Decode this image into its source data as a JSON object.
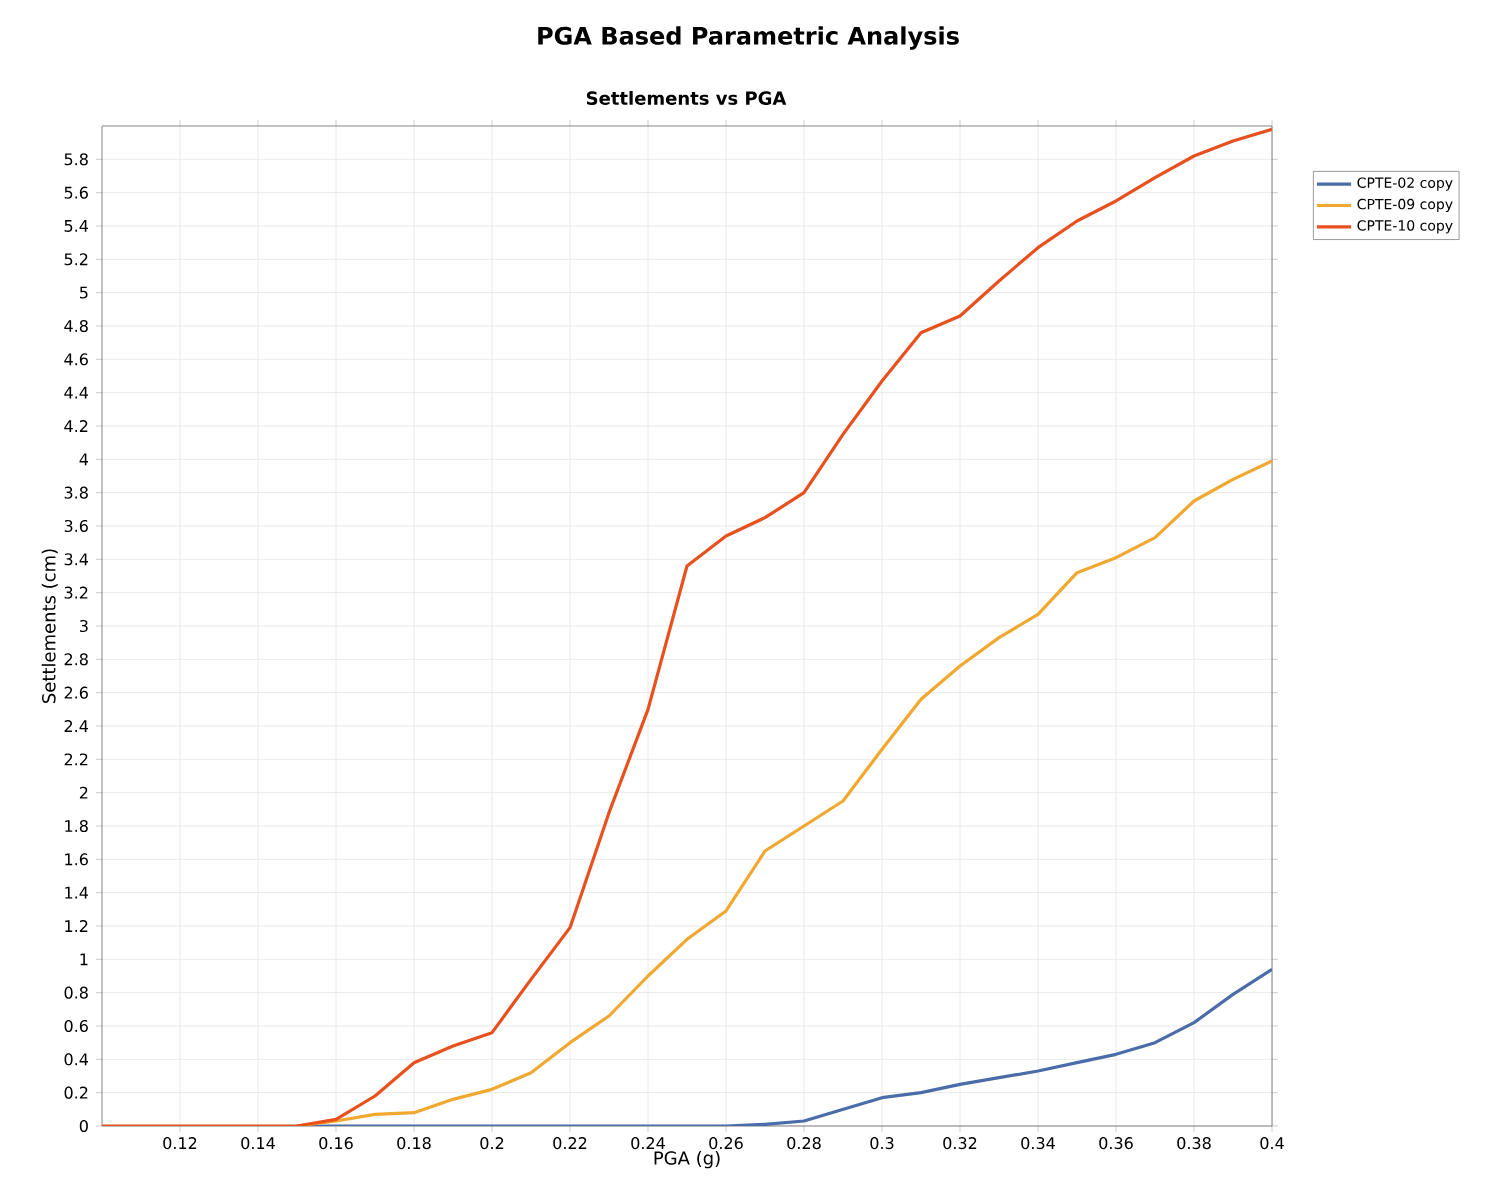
{
  "chart_data": {
    "type": "line",
    "title": "PGA Based Parametric Analysis",
    "subtitle": "Settlements vs PGA",
    "xlabel": "PGA (g)",
    "ylabel": "Settlements (cm)",
    "x": [
      0.1,
      0.11,
      0.12,
      0.13,
      0.14,
      0.15,
      0.16,
      0.17,
      0.18,
      0.19,
      0.2,
      0.21,
      0.22,
      0.23,
      0.24,
      0.25,
      0.26,
      0.27,
      0.28,
      0.29,
      0.3,
      0.31,
      0.32,
      0.33,
      0.34,
      0.35,
      0.36,
      0.37,
      0.38,
      0.39,
      0.4
    ],
    "series": [
      {
        "name": "CPTE-02 copy",
        "color": "#4a6ca8",
        "values": [
          null,
          null,
          null,
          null,
          null,
          0,
          0,
          0,
          0,
          0,
          0,
          0,
          0,
          0,
          0,
          0,
          0,
          0.01,
          0.03,
          0.1,
          0.17,
          0.2,
          0.25,
          0.29,
          0.33,
          0.38,
          0.43,
          0.5,
          0.62,
          0.79,
          0.94
        ]
      },
      {
        "name": "CPTE-09 copy",
        "color": "#f0a830",
        "values": [
          null,
          null,
          null,
          null,
          null,
          0,
          0.03,
          0.07,
          0.08,
          0.16,
          0.22,
          0.32,
          0.5,
          0.66,
          0.9,
          1.12,
          1.29,
          1.65,
          1.8,
          1.95,
          2.26,
          2.56,
          2.76,
          2.93,
          3.07,
          3.32,
          3.41,
          3.53,
          3.75,
          3.88,
          3.99
        ]
      },
      {
        "name": "CPTE-10 copy",
        "color": "#e8501e",
        "values": [
          0,
          0,
          0,
          0,
          0,
          0,
          0.04,
          0.18,
          0.38,
          0.48,
          0.56,
          0.88,
          1.19,
          1.88,
          2.5,
          3.36,
          3.54,
          3.65,
          3.8,
          4.15,
          4.47,
          4.76,
          4.86,
          5.07,
          5.27,
          5.43,
          5.55,
          5.69,
          5.82,
          5.91,
          5.98
        ]
      }
    ],
    "xlim": [
      0.1,
      0.4
    ],
    "xticks": [
      0.12,
      0.14,
      0.16,
      0.18,
      0.2,
      0.22,
      0.24,
      0.26,
      0.28,
      0.3,
      0.32,
      0.34,
      0.36,
      0.38,
      0.4
    ],
    "ylim": [
      0,
      6
    ],
    "yticks": [
      0,
      0.2,
      0.4,
      0.6,
      0.8,
      1,
      1.2,
      1.4,
      1.6,
      1.8,
      2,
      2.2,
      2.4,
      2.6,
      2.8,
      3,
      3.2,
      3.4,
      3.6,
      3.8,
      4,
      4.2,
      4.4,
      4.6,
      4.8,
      5,
      5.2,
      5.4,
      5.6,
      5.8
    ],
    "grid": true,
    "legend": "top right",
    "marker": "none",
    "line_style": "solid"
  }
}
